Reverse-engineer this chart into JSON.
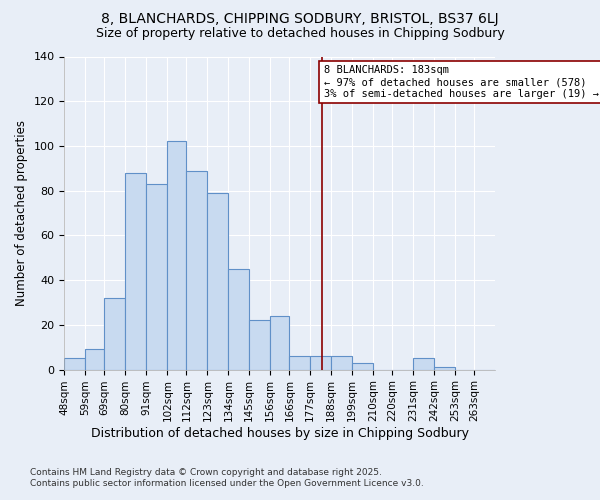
{
  "title1": "8, BLANCHARDS, CHIPPING SODBURY, BRISTOL, BS37 6LJ",
  "title2": "Size of property relative to detached houses in Chipping Sodbury",
  "xlabel": "Distribution of detached houses by size in Chipping Sodbury",
  "ylabel": "Number of detached properties",
  "footnote1": "Contains HM Land Registry data © Crown copyright and database right 2025.",
  "footnote2": "Contains public sector information licensed under the Open Government Licence v3.0.",
  "bin_labels": [
    "48sqm",
    "59sqm",
    "69sqm",
    "80sqm",
    "91sqm",
    "102sqm",
    "112sqm",
    "123sqm",
    "134sqm",
    "145sqm",
    "156sqm",
    "166sqm",
    "177sqm",
    "188sqm",
    "199sqm",
    "210sqm",
    "220sqm",
    "231sqm",
    "242sqm",
    "253sqm",
    "263sqm"
  ],
  "bin_edges": [
    48,
    59,
    69,
    80,
    91,
    102,
    112,
    123,
    134,
    145,
    156,
    166,
    177,
    188,
    199,
    210,
    220,
    231,
    242,
    253,
    263,
    274
  ],
  "bar_heights": [
    5,
    9,
    32,
    88,
    83,
    102,
    89,
    79,
    45,
    22,
    24,
    6,
    6,
    6,
    3,
    0,
    0,
    5,
    1,
    0,
    0
  ],
  "bar_fill_color": "#c8daf0",
  "bar_edge_color": "#6090c8",
  "vline_x": 183,
  "vline_color": "#8b0000",
  "annotation_text": "8 BLANCHARDS: 183sqm\n← 97% of detached houses are smaller (578)\n3% of semi-detached houses are larger (19) →",
  "annotation_box_color": "white",
  "annotation_box_edge_color": "#8b0000",
  "ylim": [
    0,
    140
  ],
  "yticks": [
    0,
    20,
    40,
    60,
    80,
    100,
    120,
    140
  ],
  "bg_color": "#e8eef7",
  "plot_bg_color": "#e8eef7",
  "grid_color": "white",
  "title1_fontsize": 10,
  "title2_fontsize": 9,
  "xlabel_fontsize": 9,
  "ylabel_fontsize": 8.5
}
